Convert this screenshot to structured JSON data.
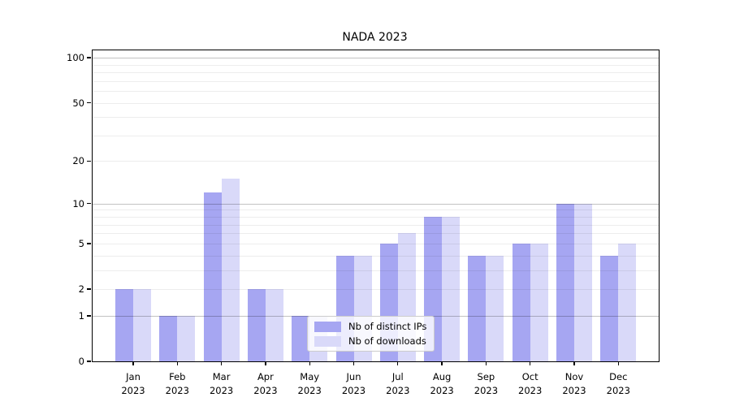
{
  "title": "NADA 2023",
  "legend": {
    "items": [
      {
        "label": "Nb of distinct IPs",
        "color": "#a6a6f2"
      },
      {
        "label": "Nb of downloads",
        "color": "#d9d9f9"
      }
    ]
  },
  "chart_data": {
    "type": "bar",
    "title": "NADA 2023",
    "categories": [
      "Jan\n2023",
      "Feb\n2023",
      "Mar\n2023",
      "Apr\n2023",
      "May\n2023",
      "Jun\n2023",
      "Jul\n2023",
      "Aug\n2023",
      "Sep\n2023",
      "Oct\n2023",
      "Nov\n2023",
      "Dec\n2023"
    ],
    "series": [
      {
        "name": "Nb of distinct IPs",
        "color": "#a6a6f2",
        "values": [
          2,
          1,
          12,
          2,
          1,
          4,
          5,
          8,
          4,
          5,
          10,
          4
        ]
      },
      {
        "name": "Nb of downloads",
        "color": "#d9d9f9",
        "values": [
          2,
          1,
          15,
          2,
          1,
          4,
          6,
          8,
          4,
          5,
          10,
          5
        ]
      }
    ],
    "xlabel": "",
    "ylabel": "",
    "yscale": "log1p",
    "ylim": [
      0,
      112
    ],
    "ytick_labels": [
      0,
      1,
      2,
      5,
      10,
      20,
      50,
      100
    ],
    "major_gridlines": [
      1,
      10,
      100
    ],
    "minor_gridlines": [
      2,
      3,
      4,
      5,
      6,
      7,
      8,
      9,
      20,
      30,
      40,
      50,
      60,
      70,
      80,
      90
    ],
    "grid": true,
    "legend_position": "lower center, overlapping May-Jun bars"
  },
  "colors": {
    "background": "#ffffff",
    "axis": "#000000",
    "major_grid": "rgba(0,0,0,0.24)",
    "minor_grid": "rgba(0,0,0,0.07)"
  }
}
